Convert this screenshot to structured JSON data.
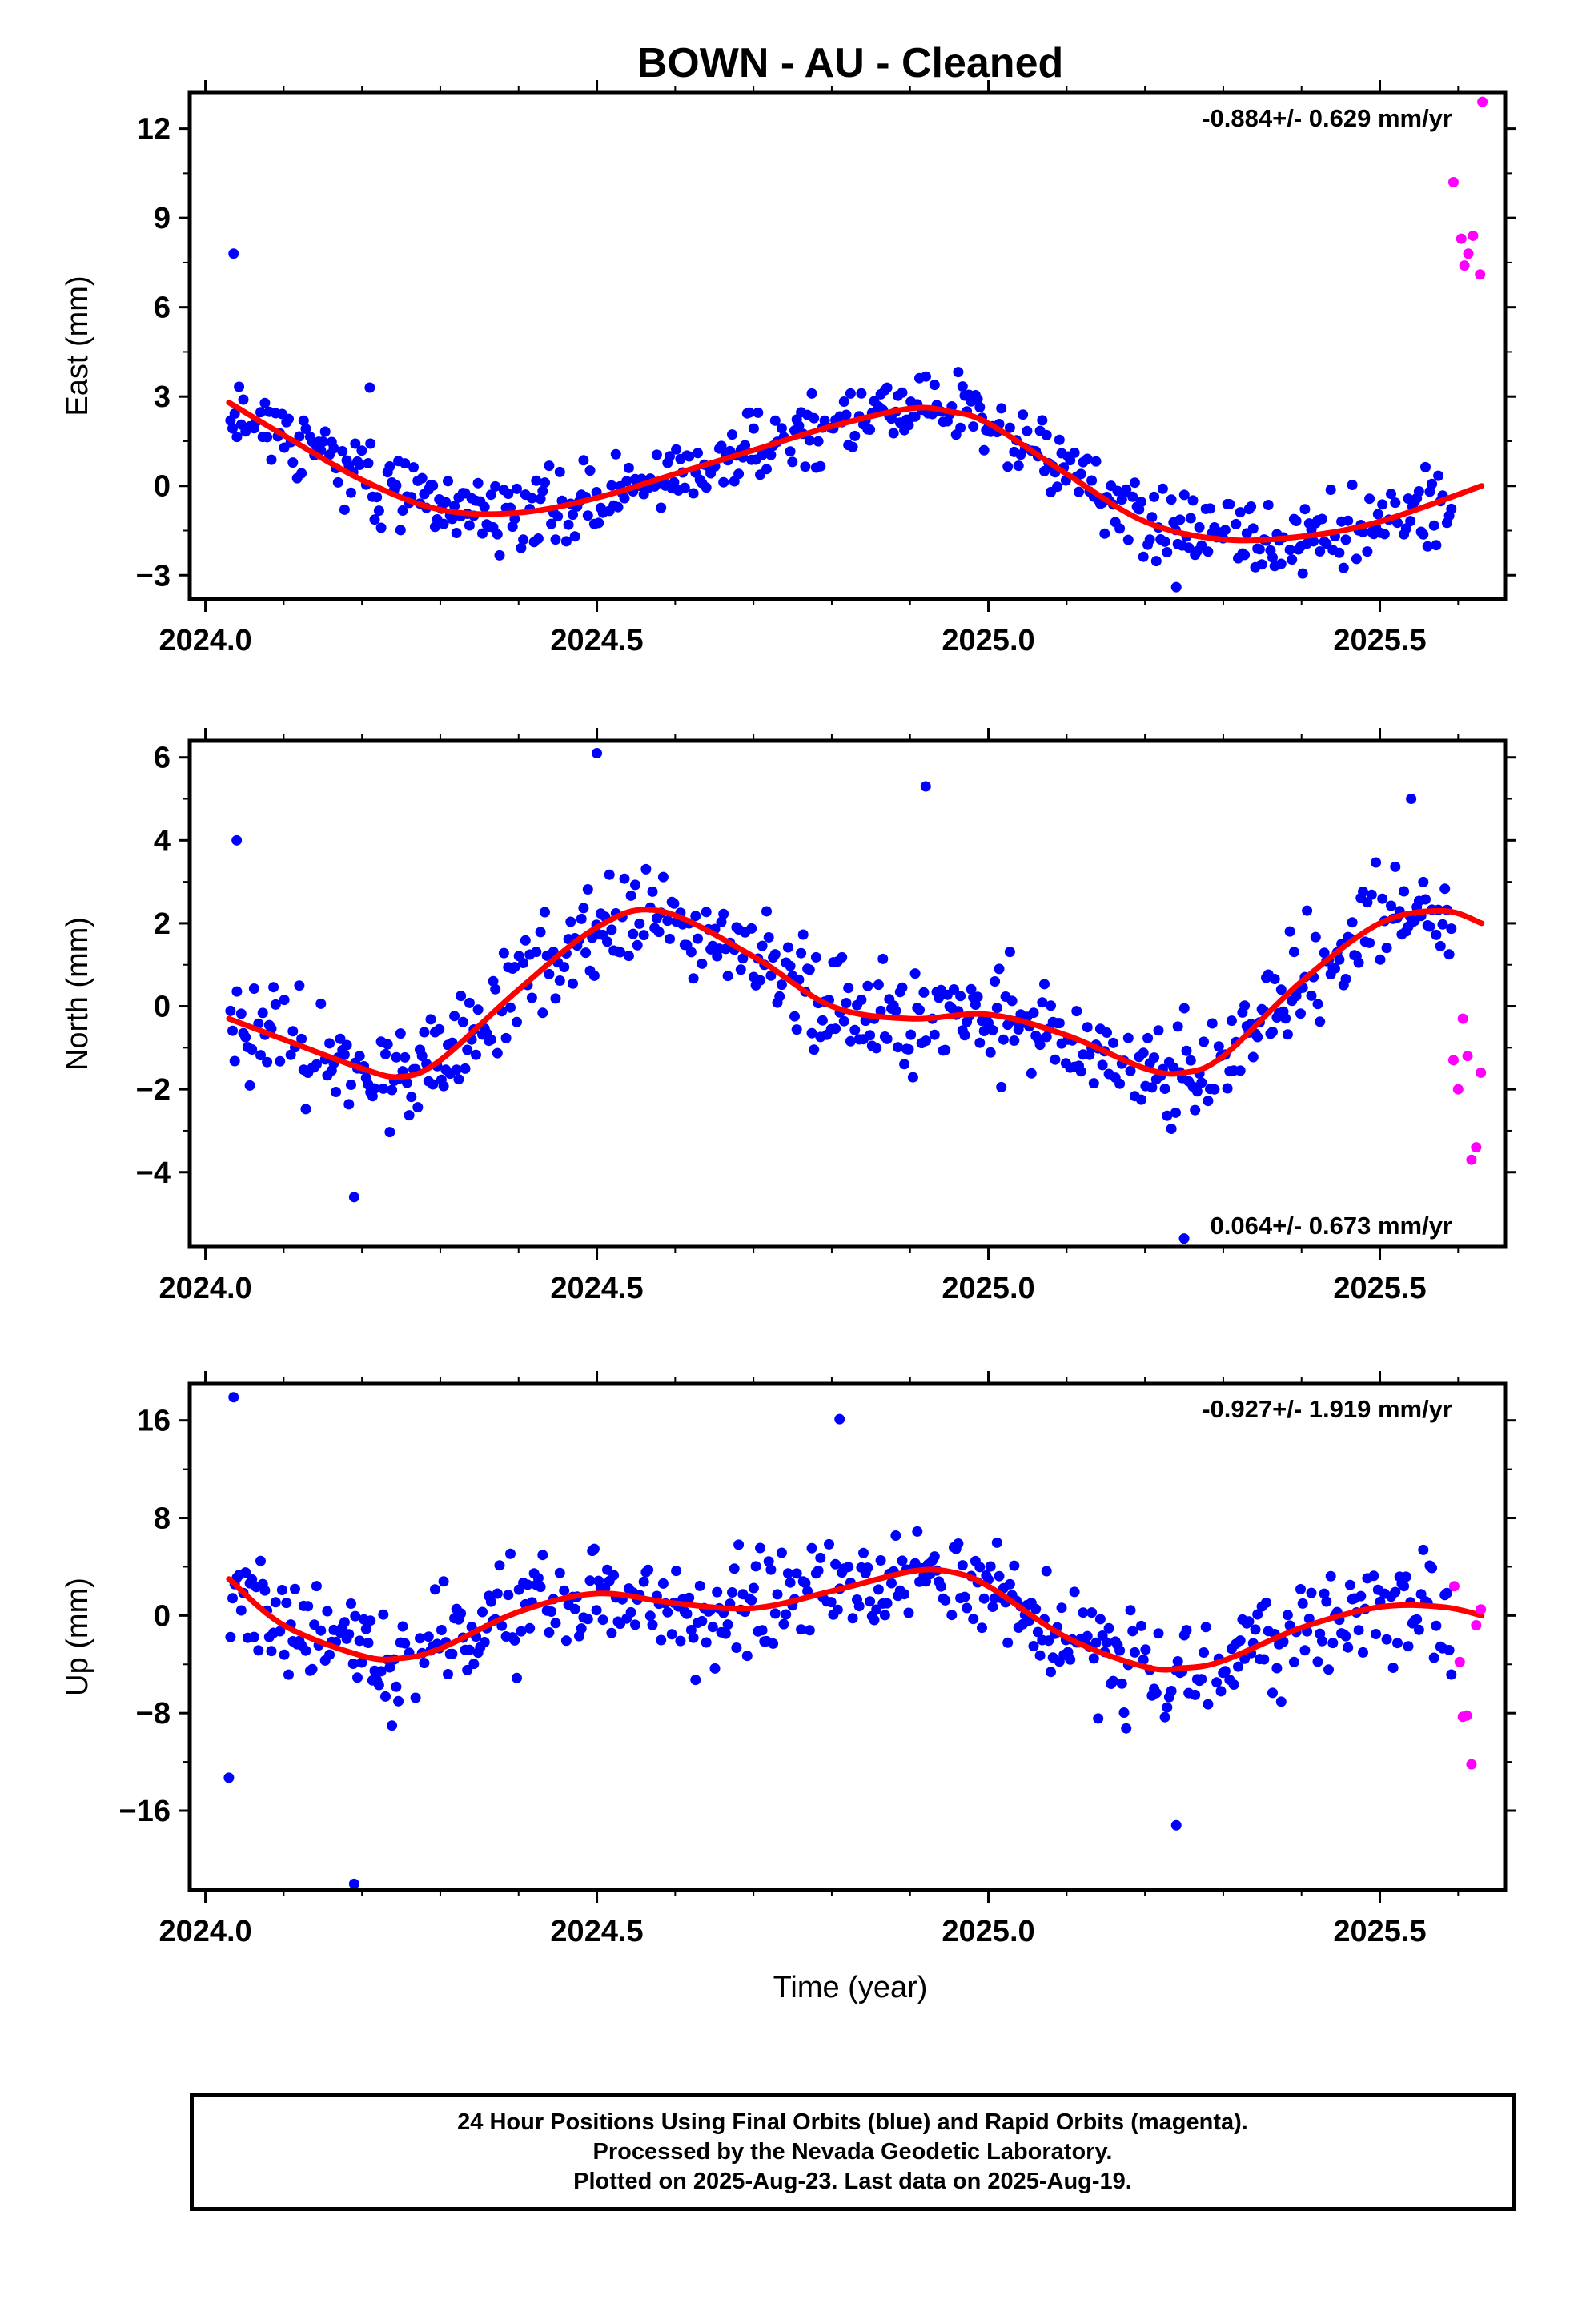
{
  "title": "BOWN  - AU - Cleaned",
  "xlabel": "Time (year)",
  "footer": {
    "line1": "24 Hour Positions Using Final Orbits (blue) and Rapid Orbits (magenta).",
    "line2": "Processed by the Nevada Geodetic Laboratory.",
    "line3": "Plotted on 2025-Aug-23. Last data on 2025-Aug-19."
  },
  "colors": {
    "final": "#0000ff",
    "rapid": "#ff00ff",
    "fit": "#ff0000"
  },
  "chart_data": [
    {
      "type": "scatter",
      "name": "east",
      "ylabel": "East (mm)",
      "velocity": "-0.884+/- 0.629 mm/yr",
      "xlim": [
        2023.98,
        2025.66
      ],
      "ylim": [
        -3.8,
        13.2
      ],
      "yticks": [
        -3,
        0,
        3,
        6,
        9,
        12
      ],
      "ytick_labels": [
        "−3",
        "0",
        "3",
        "6",
        "9",
        "12"
      ],
      "xticks": [
        2024.0,
        2024.5,
        2025.0,
        2025.5
      ],
      "xtick_labels": [
        "2024.0",
        "2024.5",
        "2025.0",
        "2025.5"
      ],
      "fit": {
        "x": [
          2024.03,
          2024.1,
          2024.2,
          2024.3,
          2024.4,
          2024.5,
          2024.6,
          2024.7,
          2024.8,
          2024.9,
          2024.95,
          2025.0,
          2025.1,
          2025.2,
          2025.3,
          2025.4,
          2025.5,
          2025.63
        ],
        "y": [
          2.8,
          1.7,
          0.2,
          -0.8,
          -0.9,
          -0.4,
          0.4,
          1.2,
          2.0,
          2.6,
          2.5,
          2.1,
          0.4,
          -1.2,
          -1.8,
          -1.7,
          -1.2,
          0.0
        ]
      },
      "rapid": {
        "x": [
          2025.594,
          2025.604,
          2025.608,
          2025.613,
          2025.619,
          2025.628
        ],
        "y": [
          10.2,
          8.3,
          7.4,
          7.8,
          8.4,
          7.1
        ]
      },
      "rapid_extra": {
        "x": [
          2025.631
        ],
        "y": [
          12.9
        ]
      },
      "final_outliers": {
        "x": [
          2024.036,
          2024.21,
          2025.24
        ],
        "y": [
          7.8,
          3.3,
          -3.4
        ]
      },
      "noise": 1.05,
      "seed": 11
    },
    {
      "type": "scatter",
      "name": "north",
      "ylabel": "North (mm)",
      "velocity": "0.064+/- 0.673 mm/yr",
      "xlim": [
        2023.98,
        2025.66
      ],
      "ylim": [
        -5.8,
        6.4
      ],
      "yticks": [
        -4,
        -2,
        0,
        2,
        4,
        6
      ],
      "ytick_labels": [
        "−4",
        "−2",
        "0",
        "2",
        "4",
        "6"
      ],
      "xticks": [
        2024.0,
        2024.5,
        2025.0,
        2025.5
      ],
      "xtick_labels": [
        "2024.0",
        "2024.5",
        "2025.0",
        "2025.5"
      ],
      "fit": {
        "x": [
          2024.03,
          2024.1,
          2024.2,
          2024.25,
          2024.3,
          2024.4,
          2024.5,
          2024.58,
          2024.7,
          2024.8,
          2024.9,
          2025.0,
          2025.1,
          2025.2,
          2025.25,
          2025.3,
          2025.4,
          2025.5,
          2025.58,
          2025.63
        ],
        "y": [
          -0.3,
          -0.8,
          -1.5,
          -1.7,
          -1.3,
          0.4,
          1.9,
          2.3,
          1.2,
          0.0,
          -0.3,
          -0.2,
          -0.7,
          -1.5,
          -1.6,
          -1.2,
          0.6,
          2.0,
          2.3,
          2.0
        ]
      },
      "rapid": {
        "x": [
          2025.594,
          2025.6,
          2025.606,
          2025.612,
          2025.617,
          2025.623,
          2025.629
        ],
        "y": [
          -1.3,
          -2.0,
          -0.3,
          -1.2,
          -3.7,
          -3.4,
          -1.6
        ]
      },
      "rapid_extra": {
        "x": [],
        "y": []
      },
      "final_outliers": {
        "x": [
          2024.04,
          2024.5,
          2024.92,
          2025.25,
          2025.54,
          2024.19
        ],
        "y": [
          4.0,
          6.1,
          5.3,
          -5.6,
          5.0,
          -4.6
        ]
      },
      "noise": 1.0,
      "seed": 23
    },
    {
      "type": "scatter",
      "name": "up",
      "ylabel": "Up (mm)",
      "velocity": "-0.927+/- 1.919 mm/yr",
      "xlim": [
        2023.98,
        2025.66
      ],
      "ylim": [
        -22.5,
        19.0
      ],
      "yticks": [
        -16,
        -8,
        0,
        8,
        16
      ],
      "ytick_labels": [
        "−16",
        "−8",
        "0",
        "8",
        "16"
      ],
      "xticks": [
        2024.0,
        2024.5,
        2025.0,
        2025.5
      ],
      "xtick_labels": [
        "2024.0",
        "2024.5",
        "2025.0",
        "2025.5"
      ],
      "fit": {
        "x": [
          2024.03,
          2024.1,
          2024.2,
          2024.25,
          2024.3,
          2024.4,
          2024.5,
          2024.6,
          2024.7,
          2024.8,
          2024.9,
          2024.95,
          2025.0,
          2025.1,
          2025.2,
          2025.25,
          2025.3,
          2025.4,
          2025.5,
          2025.58,
          2025.63
        ],
        "y": [
          3.0,
          -0.8,
          -3.3,
          -3.5,
          -2.7,
          0.3,
          1.8,
          1.0,
          0.6,
          2.0,
          3.6,
          3.6,
          2.4,
          -1.8,
          -4.2,
          -4.3,
          -3.7,
          -1.0,
          0.7,
          0.7,
          0.0
        ]
      },
      "rapid": {
        "x": [
          2025.595,
          2025.602,
          2025.606,
          2025.611,
          2025.617,
          2025.623,
          2025.629
        ],
        "y": [
          2.4,
          -3.8,
          -8.3,
          -8.2,
          -12.2,
          -0.8,
          0.5
        ]
      },
      "rapid_extra": {
        "x": [],
        "y": []
      },
      "final_outliers": {
        "x": [
          2024.036,
          2024.19,
          2024.03,
          2024.81,
          2025.24
        ],
        "y": [
          17.9,
          -22.0,
          -13.3,
          16.1,
          -17.2
        ]
      },
      "noise": 3.6,
      "seed": 37
    }
  ]
}
